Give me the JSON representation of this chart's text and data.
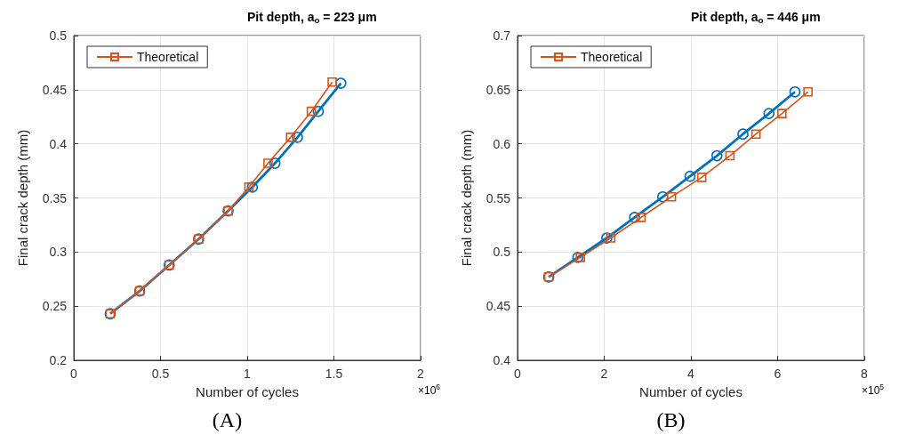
{
  "chart_data": [
    {
      "type": "line",
      "title": "Pit depth, a$_{o}$ = 223 μm",
      "xlabel": "Number of cycles",
      "ylabel": "Final crack depth (mm)",
      "xlim": [
        0,
        2
      ],
      "xticks": [
        0,
        0.5,
        1,
        1.5,
        2
      ],
      "ylim": [
        0.2,
        0.5
      ],
      "yticks": [
        0.2,
        0.25,
        0.3,
        0.35,
        0.4,
        0.45,
        0.5
      ],
      "grid": true,
      "legend": "top left",
      "line_style": "solid",
      "series": [
        {
          "color": "#0072bd",
          "marker": "circle",
          "x": [
            0.21,
            0.38,
            0.55,
            0.72,
            0.89,
            1.03,
            1.16,
            1.29,
            1.41,
            1.54
          ],
          "values": [
            0.243,
            0.264,
            0.288,
            0.312,
            0.338,
            0.36,
            0.382,
            0.406,
            0.43,
            0.456
          ]
        },
        {
          "name": "Theoretical",
          "color": "#d95319",
          "marker": "square",
          "x": [
            0.21,
            0.38,
            0.55,
            0.72,
            0.89,
            1.01,
            1.12,
            1.25,
            1.37,
            1.49
          ],
          "values": [
            0.243,
            0.264,
            0.288,
            0.312,
            0.338,
            0.36,
            0.382,
            0.406,
            0.43,
            0.457
          ]
        }
      ],
      "annotations": [
        "×10$^{6}$",
        "(A)"
      ]
    },
    {
      "type": "line",
      "title": "Pit depth, a$_{o}$ = 446 μm",
      "xlabel": "Number of cycles",
      "ylabel": "Final crack depth (mm)",
      "xlim": [
        0,
        8
      ],
      "xticks": [
        0,
        2,
        4,
        6,
        8
      ],
      "ylim": [
        0.4,
        0.7
      ],
      "yticks": [
        0.4,
        0.45,
        0.5,
        0.55,
        0.6,
        0.65,
        0.7
      ],
      "grid": true,
      "legend": "top left",
      "line_style": "solid",
      "series": [
        {
          "color": "#0072bd",
          "marker": "circle",
          "x": [
            0.72,
            1.39,
            2.06,
            2.7,
            3.35,
            3.98,
            4.6,
            5.2,
            5.8,
            6.4
          ],
          "values": [
            0.477,
            0.495,
            0.513,
            0.532,
            0.551,
            0.57,
            0.589,
            0.609,
            0.628,
            0.648
          ]
        },
        {
          "name": "Theoretical",
          "color": "#d95319",
          "marker": "square",
          "x": [
            0.72,
            1.45,
            2.15,
            2.85,
            3.55,
            4.25,
            4.9,
            5.5,
            6.1,
            6.7
          ],
          "values": [
            0.477,
            0.495,
            0.513,
            0.532,
            0.551,
            0.569,
            0.589,
            0.609,
            0.628,
            0.648
          ]
        }
      ],
      "annotations": [
        "×10$^{5}$",
        "(B)"
      ]
    }
  ]
}
